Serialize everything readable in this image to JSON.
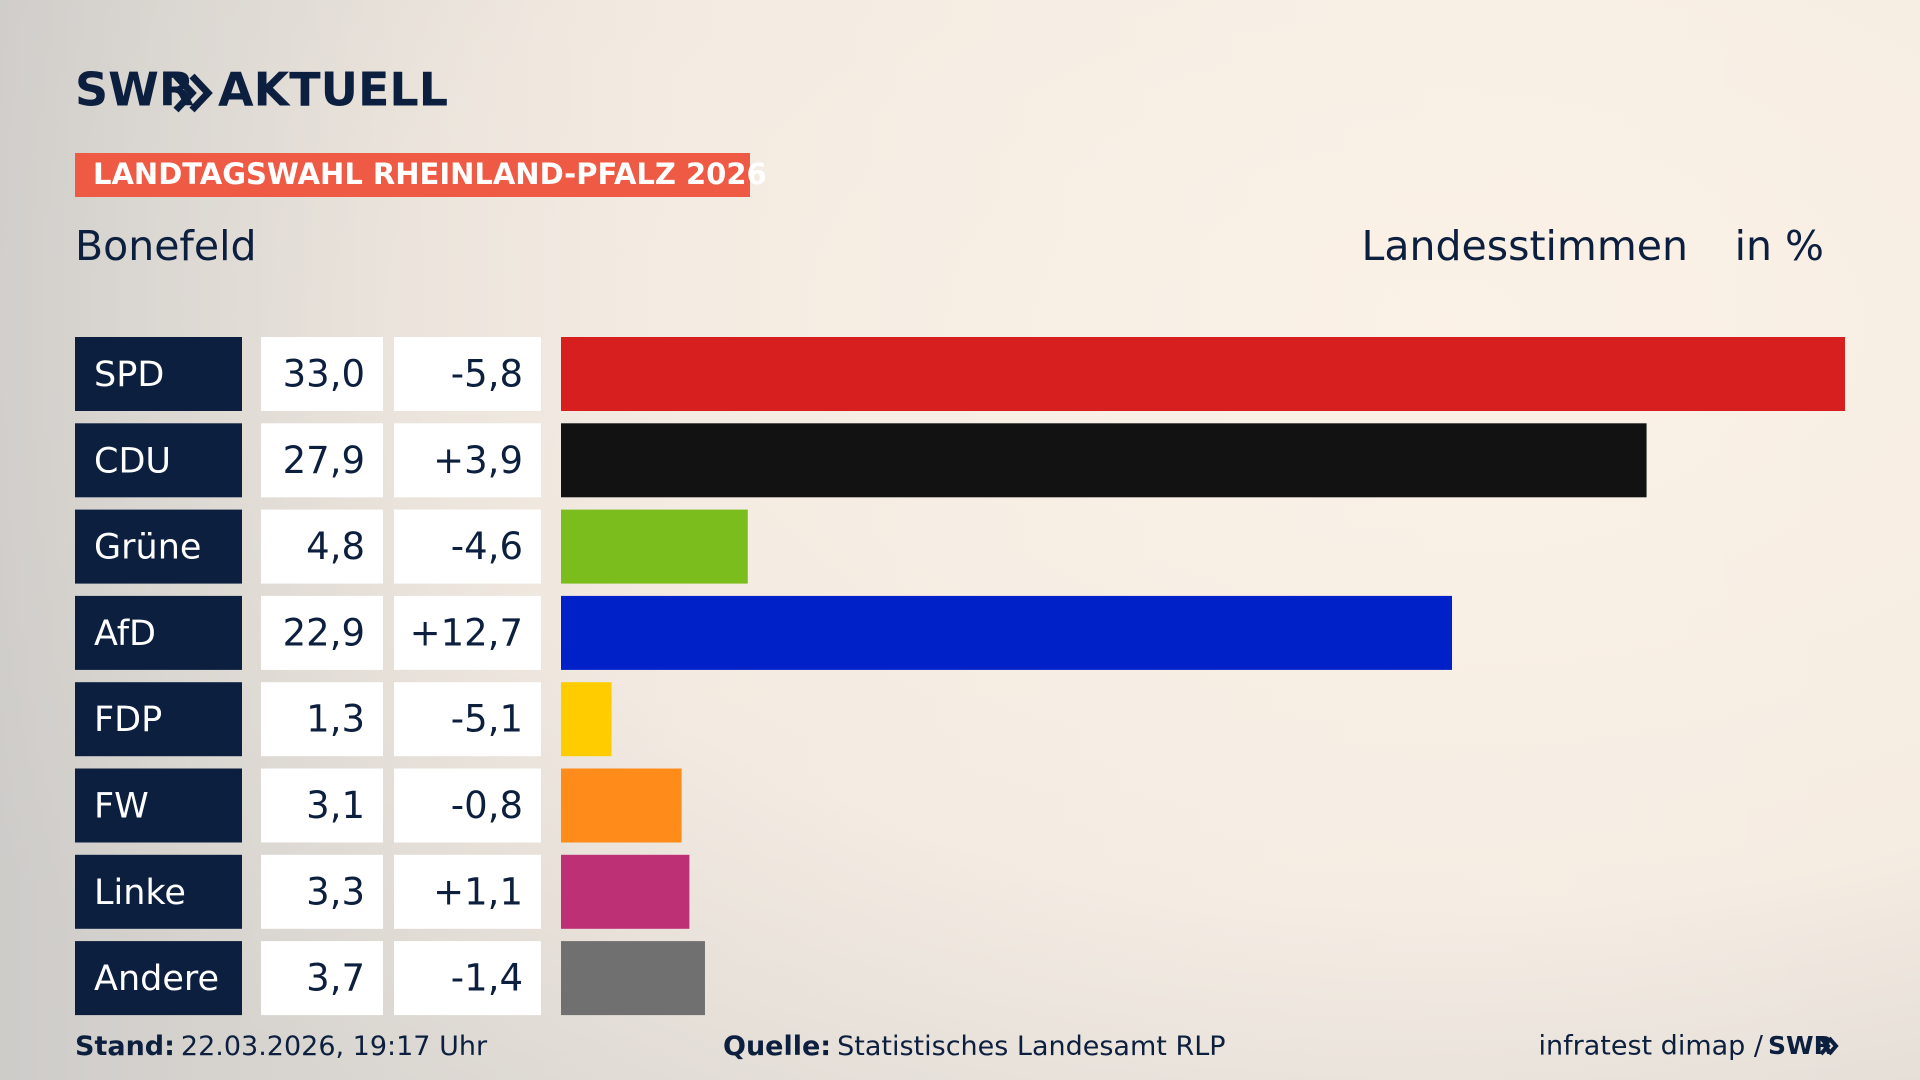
{
  "chart_data": {
    "type": "bar",
    "brand": "SWR",
    "brand_suffix": "AKTUELL",
    "title": "LANDTAGSWAHL RHEINLAND-PFALZ 2026",
    "subtitle": "Bonefeld",
    "value_label": "Landesstimmen",
    "unit": "in %",
    "categories": [
      "SPD",
      "CDU",
      "Grüne",
      "AfD",
      "FDP",
      "FW",
      "Linke",
      "Andere"
    ],
    "values": [
      33.0,
      27.9,
      4.8,
      22.9,
      1.3,
      3.1,
      3.3,
      3.7
    ],
    "value_labels": [
      "33,0",
      "27,9",
      "4,8",
      "22,9",
      "1,3",
      "3,1",
      "3,3",
      "3,7"
    ],
    "changes": [
      -5.8,
      3.9,
      -4.6,
      12.7,
      -5.1,
      -0.8,
      1.1,
      -1.4
    ],
    "change_labels": [
      "-5,8",
      "+3,9",
      "-4,6",
      "+12,7",
      "-5,1",
      "-0,8",
      "+1,1",
      "-1,4"
    ],
    "colors": [
      "#d71f1f",
      "#121212",
      "#7bbd1d",
      "#0020c8",
      "#ffcc00",
      "#ff8c1a",
      "#bd3075",
      "#707070"
    ],
    "stand_label": "Stand:",
    "stand": "22.03.2026, 19:17 Uhr",
    "source_label": "Quelle:",
    "source": "Statistisches Landesamt RLP",
    "credit": "infratest dimap /",
    "credit_brand": "SWR"
  }
}
